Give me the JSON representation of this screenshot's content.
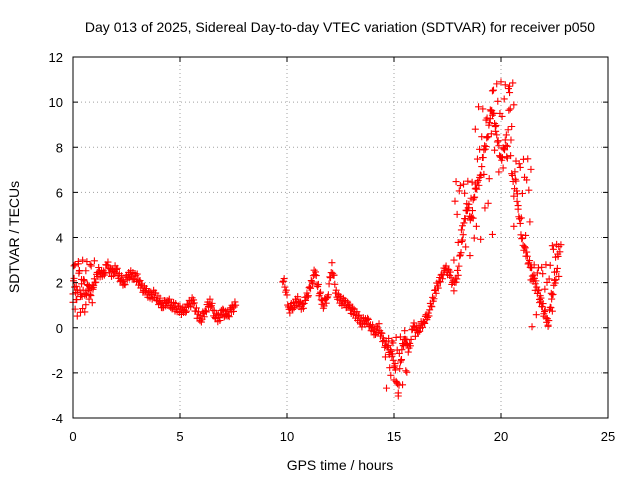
{
  "chart_data": {
    "type": "scatter",
    "title": "Day 013 of 2025, Sidereal Day-to-day VTEC variation (SDTVAR) for receiver p050",
    "xlabel": "GPS time / hours",
    "ylabel": "SDTVAR / TECUs",
    "xlim": [
      0,
      25
    ],
    "ylim": [
      -4,
      12
    ],
    "xticks": [
      0,
      5,
      10,
      15,
      20,
      25
    ],
    "yticks": [
      -4,
      -2,
      0,
      2,
      4,
      6,
      8,
      10,
      12
    ],
    "grid": true,
    "marker": "+",
    "color": "#ff0000",
    "series": [
      {
        "name": "SDTVAR",
        "x": [
          0.0,
          0.05,
          0.1,
          0.15,
          0.2,
          0.25,
          0.3,
          0.35,
          0.4,
          0.45,
          0.5,
          0.55,
          0.6,
          0.7,
          0.8,
          0.9,
          1.0,
          1.2,
          1.4,
          1.6,
          1.8,
          2.0,
          2.2,
          2.4,
          2.6,
          2.8,
          3.0,
          3.2,
          3.4,
          3.6,
          3.8,
          4.0,
          4.2,
          4.4,
          4.6,
          4.8,
          5.0,
          5.2,
          5.4,
          5.6,
          5.8,
          6.0,
          6.2,
          6.4,
          6.6,
          6.8,
          7.0,
          7.2,
          7.4,
          7.6,
          9.8,
          9.9,
          10.1,
          10.3,
          10.5,
          10.7,
          10.9,
          11.1,
          11.3,
          11.5,
          11.7,
          11.9,
          12.1,
          12.3,
          12.5,
          12.7,
          12.9,
          13.1,
          13.3,
          13.5,
          13.7,
          13.9,
          14.1,
          14.3,
          14.5,
          14.7,
          14.9,
          15.0,
          15.1,
          15.2,
          15.3,
          15.4,
          15.5,
          15.6,
          15.7,
          15.8,
          15.9,
          16.0,
          16.2,
          16.4,
          16.6,
          16.8,
          17.0,
          17.2,
          17.4,
          17.6,
          17.8,
          18.0,
          18.2,
          18.4,
          18.6,
          18.8,
          19.0,
          19.2,
          19.4,
          19.5,
          19.6,
          19.7,
          19.8,
          19.9,
          20.0,
          20.1,
          20.2,
          20.3,
          20.4,
          20.5,
          20.6,
          20.7,
          20.8,
          20.9,
          21.0,
          21.2,
          21.4,
          21.6,
          21.8,
          22.0,
          22.2,
          22.4,
          22.6,
          22.7
        ],
        "y": [
          1.5,
          2.3,
          1.0,
          2.0,
          0.6,
          2.8,
          2.4,
          1.2,
          1.8,
          0.8,
          2.2,
          1.6,
          1.2,
          2.0,
          1.5,
          1.8,
          2.0,
          2.5,
          2.3,
          2.8,
          2.4,
          2.6,
          2.2,
          2.0,
          2.4,
          2.3,
          2.2,
          1.8,
          1.6,
          1.4,
          1.5,
          1.2,
          1.0,
          1.2,
          1.0,
          0.9,
          0.8,
          0.7,
          1.0,
          1.2,
          0.6,
          0.4,
          0.8,
          1.2,
          0.6,
          0.4,
          0.7,
          0.5,
          0.8,
          1.0,
          2.2,
          1.9,
          0.8,
          1.0,
          1.2,
          0.9,
          1.3,
          1.8,
          2.5,
          1.6,
          1.0,
          1.4,
          2.8,
          1.5,
          1.2,
          1.1,
          0.9,
          0.7,
          0.5,
          0.2,
          0.4,
          0.1,
          -0.2,
          0.0,
          -0.6,
          -0.9,
          -1.2,
          -1.6,
          -2.2,
          -2.9,
          -1.5,
          -0.8,
          -0.3,
          -0.7,
          -1.0,
          -0.5,
          0.2,
          -0.2,
          0.0,
          0.3,
          0.6,
          1.2,
          1.8,
          2.2,
          2.6,
          2.4,
          1.8,
          2.5,
          4.0,
          5.5,
          4.8,
          6.2,
          6.5,
          7.8,
          8.5,
          9.4,
          9.6,
          9.2,
          8.6,
          8.0,
          7.4,
          7.8,
          8.2,
          7.5,
          10.8,
          7.0,
          6.0,
          6.6,
          5.4,
          4.5,
          3.8,
          3.2,
          2.6,
          2.0,
          1.4,
          0.8,
          0.2,
          1.5,
          2.4,
          3.6
        ],
        "bands": [
          {
            "from": 17.8,
            "to": 18.8,
            "low": 3.0,
            "high": 6.5
          },
          {
            "from": 18.8,
            "to": 19.6,
            "low": 3.5,
            "high": 9.8
          },
          {
            "from": 19.6,
            "to": 20.6,
            "low": 6.5,
            "high": 10.9
          },
          {
            "from": 20.6,
            "to": 21.4,
            "low": 4.0,
            "high": 7.5
          },
          {
            "from": 21.4,
            "to": 22.4,
            "low": 0.0,
            "high": 2.8
          },
          {
            "from": 22.4,
            "to": 22.8,
            "low": 2.2,
            "high": 3.7
          },
          {
            "from": 0.0,
            "to": 1.0,
            "low": 0.4,
            "high": 3.0
          },
          {
            "from": 14.6,
            "to": 15.6,
            "low": -3.0,
            "high": -0.4
          }
        ]
      }
    ]
  }
}
